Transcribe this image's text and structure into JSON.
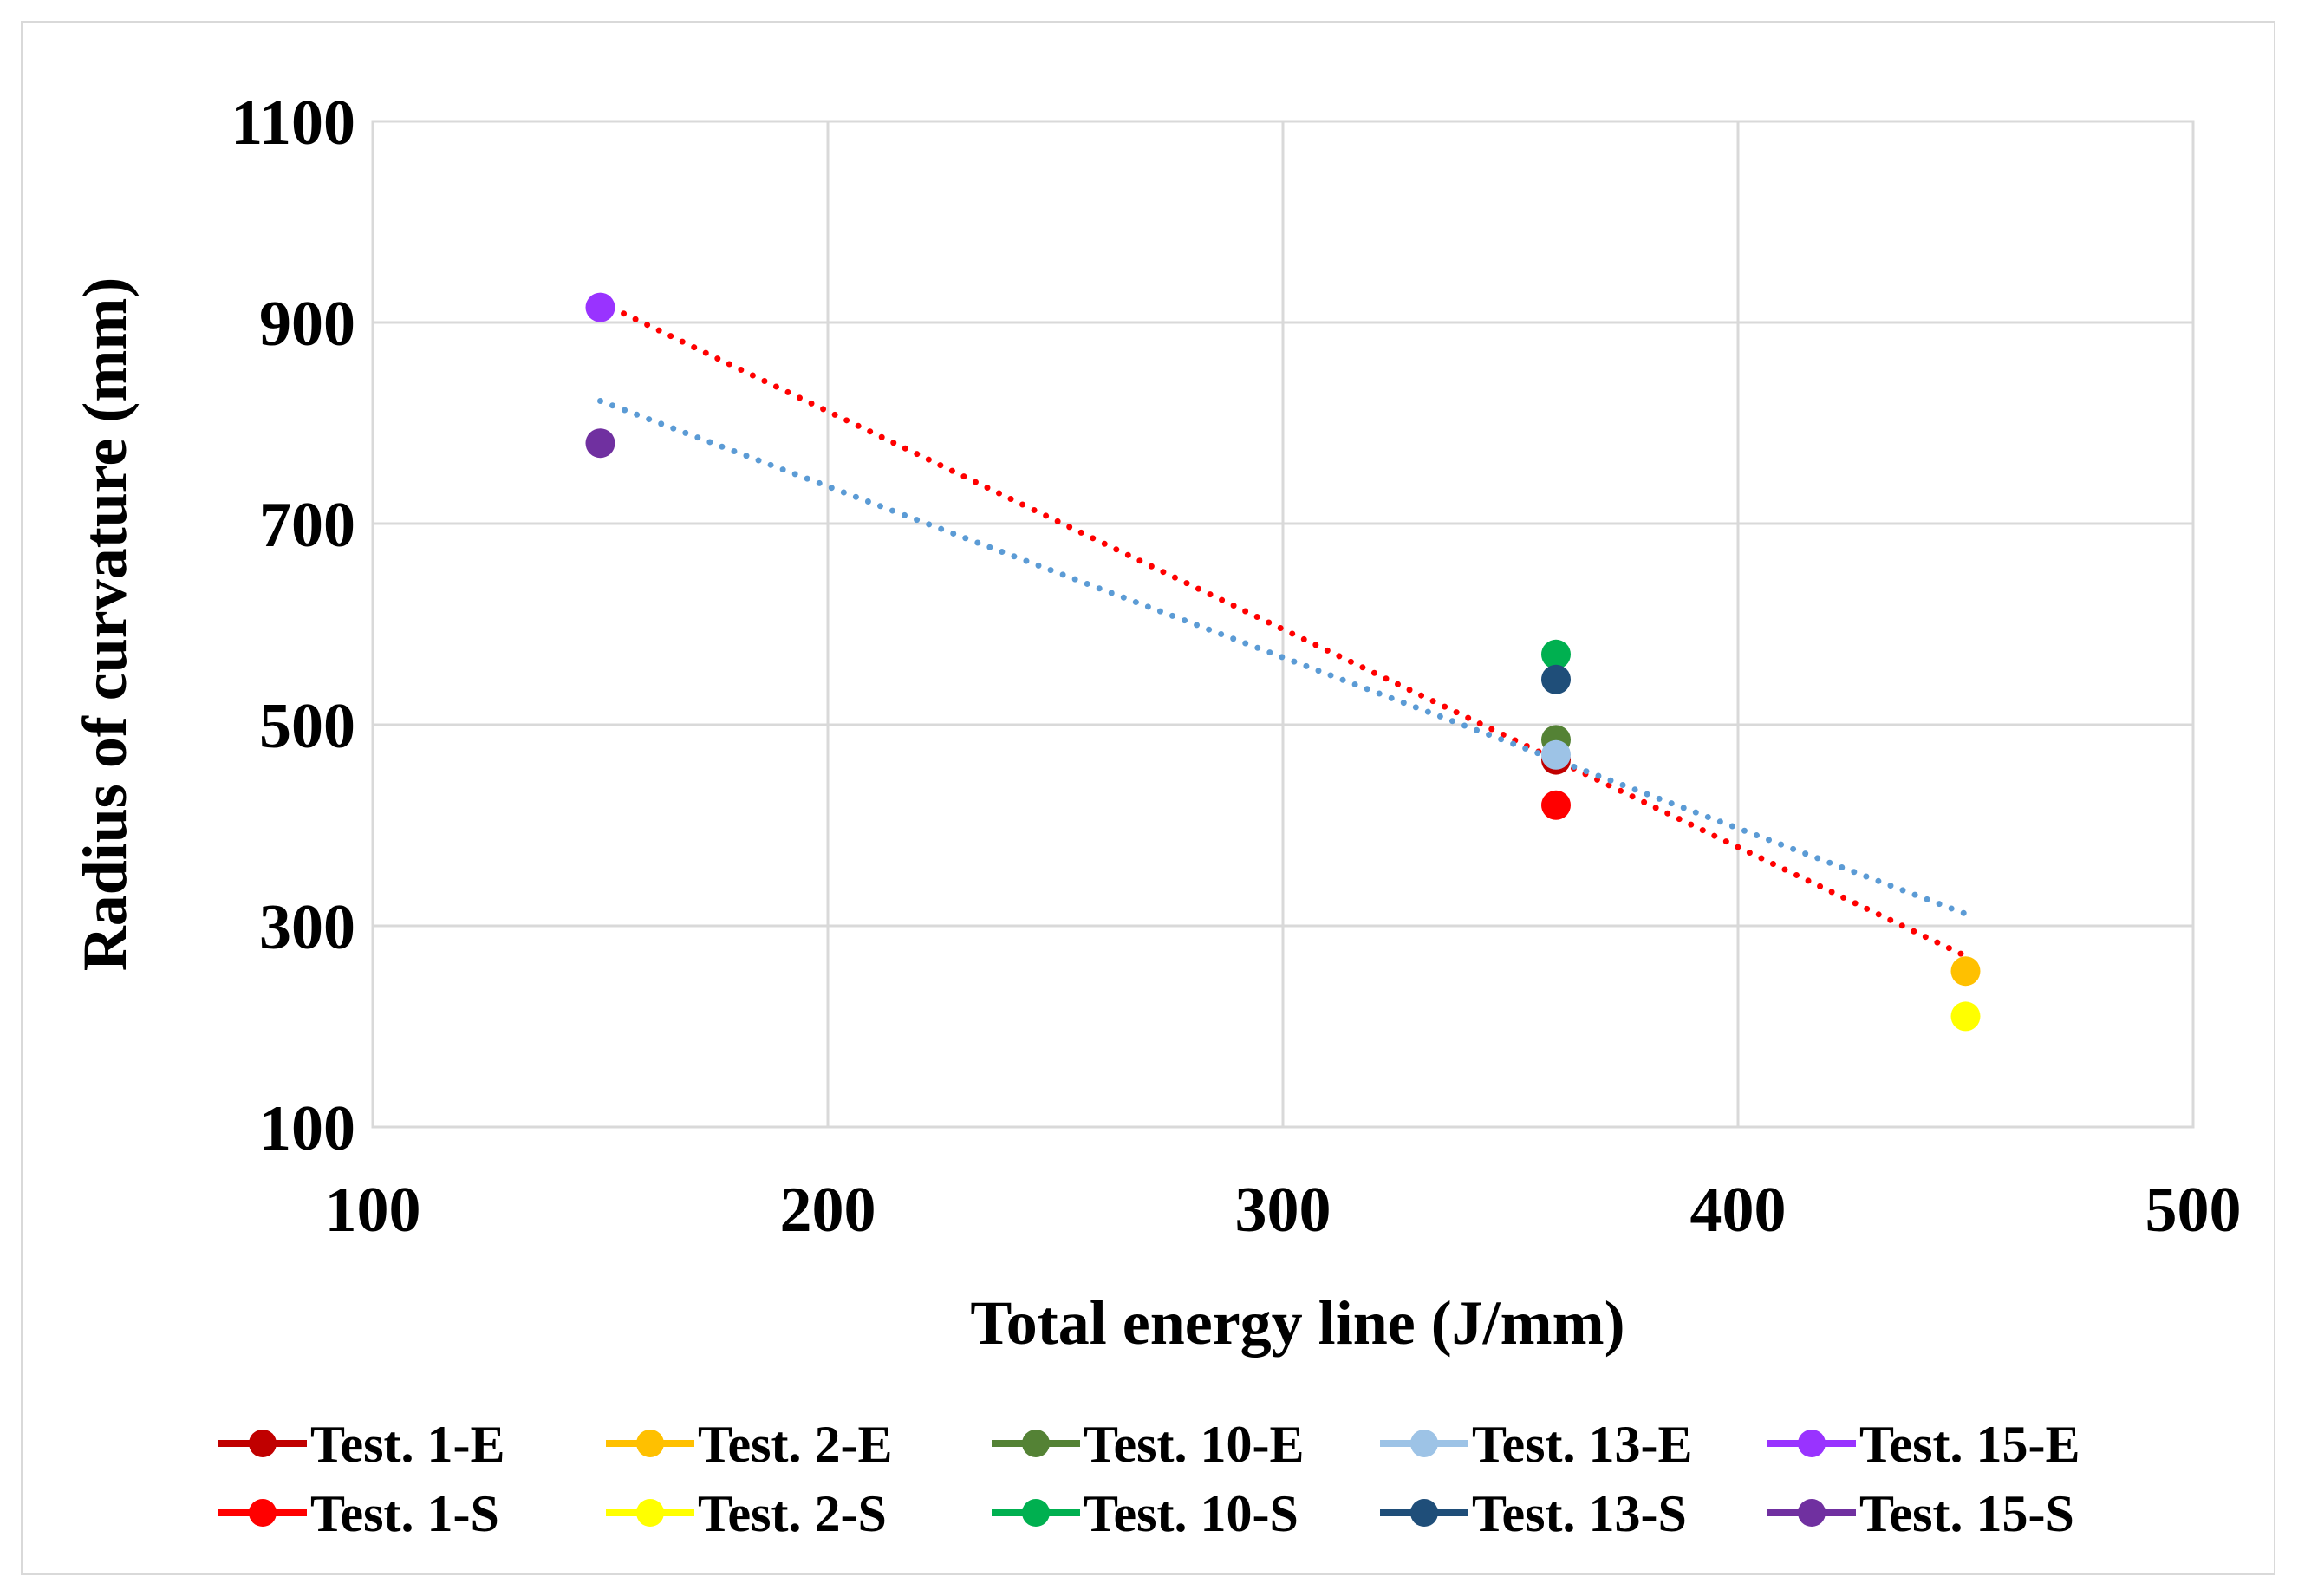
{
  "chart_data": {
    "type": "scatter",
    "title": "",
    "xlabel": "Total energy line (J/mm)",
    "ylabel": "Radius of curvature (mm)",
    "xlim": [
      100,
      500
    ],
    "ylim": [
      100,
      1100
    ],
    "xticks": [
      "100",
      "200",
      "300",
      "400",
      "500"
    ],
    "yticks": [
      "100",
      "300",
      "500",
      "700",
      "900",
      "1100"
    ],
    "grid": true,
    "legend_position": "bottom",
    "series": [
      {
        "name": "Test. 1-E",
        "color": "#c00000",
        "x": [
          360
        ],
        "y": [
          465
        ]
      },
      {
        "name": "Test. 2-E",
        "color": "#ffc000",
        "x": [
          450
        ],
        "y": [
          255
        ]
      },
      {
        "name": "Test. 10-E",
        "color": "#548235",
        "x": [
          360
        ],
        "y": [
          485
        ]
      },
      {
        "name": "Test. 13-E",
        "color": "#9dc3e6",
        "x": [
          360
        ],
        "y": [
          470
        ]
      },
      {
        "name": "Test. 15-E",
        "color": "#9933ff",
        "x": [
          150
        ],
        "y": [
          915
        ]
      },
      {
        "name": "Test. 1-S",
        "color": "#ff0000",
        "x": [
          360
        ],
        "y": [
          420
        ]
      },
      {
        "name": "Test. 2-S",
        "color": "#ffff00",
        "x": [
          450
        ],
        "y": [
          210
        ]
      },
      {
        "name": "Test. 10-S",
        "color": "#00b050",
        "x": [
          360
        ],
        "y": [
          570
        ]
      },
      {
        "name": "Test. 13-S",
        "color": "#1f4e79",
        "x": [
          360
        ],
        "y": [
          545
        ]
      },
      {
        "name": "Test. 15-S",
        "color": "#7030a0",
        "x": [
          150
        ],
        "y": [
          780
        ]
      }
    ],
    "trendlines": [
      {
        "color": "#ff0000",
        "style": "dotted",
        "x": [
          150,
          450
        ],
        "y": [
          920,
          270
        ]
      },
      {
        "color": "#5b9bd5",
        "style": "dotted",
        "x": [
          150,
          450
        ],
        "y": [
          822,
          312
        ]
      }
    ]
  }
}
